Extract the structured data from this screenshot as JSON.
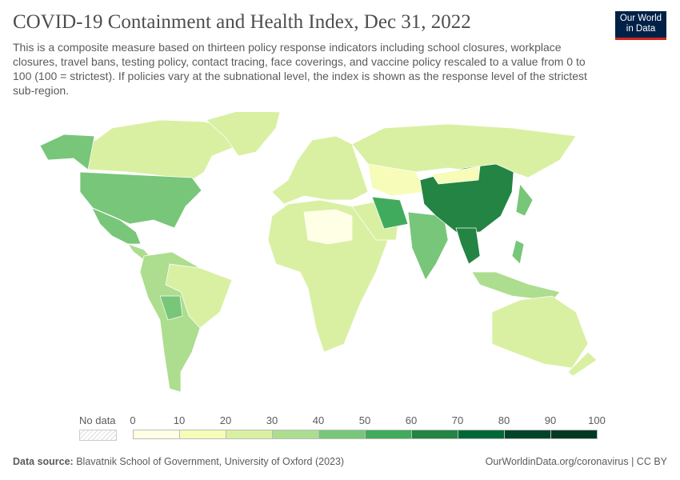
{
  "header": {
    "title": "COVID-19 Containment and Health Index, Dec 31, 2022",
    "subtitle": "This is a composite measure based on thirteen policy response indicators including school closures, workplace closures, travel bans, testing policy, contact tracing, face coverings, and vaccine policy rescaled to a value from 0 to 100 (100 = strictest). If policies vary at the subnational level, the index is shown as the response level of the strictest sub-region."
  },
  "logo": {
    "line1": "Our World",
    "line2": "in Data"
  },
  "legend": {
    "no_data_label": "No data",
    "ticks": [
      "0",
      "10",
      "20",
      "30",
      "40",
      "50",
      "60",
      "70",
      "80",
      "90",
      "100"
    ],
    "colors": [
      "#ffffe5",
      "#f7fcb9",
      "#d9f0a3",
      "#addd8e",
      "#78c679",
      "#41ab5d",
      "#238443",
      "#006837",
      "#004529",
      "#003a22"
    ]
  },
  "map": {
    "regions": [
      {
        "name": "Canada",
        "band": "20-30",
        "color": "#d9f0a3"
      },
      {
        "name": "Alaska",
        "band": "40-50",
        "color": "#78c679"
      },
      {
        "name": "Greenland",
        "band": "20-30",
        "color": "#d9f0a3"
      },
      {
        "name": "United States",
        "band": "40-50",
        "color": "#78c679"
      },
      {
        "name": "Mexico",
        "band": "40-50",
        "color": "#78c679"
      },
      {
        "name": "Central America",
        "band": "30-40",
        "color": "#addd8e"
      },
      {
        "name": "South America",
        "band": "30-40",
        "color": "#addd8e"
      },
      {
        "name": "Brazil",
        "band": "20-30",
        "color": "#d9f0a3"
      },
      {
        "name": "Bolivia",
        "band": "40-50",
        "color": "#78c679"
      },
      {
        "name": "Europe",
        "band": "20-30",
        "color": "#d9f0a3"
      },
      {
        "name": "Russia",
        "band": "20-30",
        "color": "#d9f0a3"
      },
      {
        "name": "Africa",
        "band": "20-30",
        "color": "#d9f0a3"
      },
      {
        "name": "Sahara",
        "band": "0-10",
        "color": "#ffffe5"
      },
      {
        "name": "Kazakhstan",
        "band": "10-20",
        "color": "#f7fcb9"
      },
      {
        "name": "Arabia",
        "band": "20-30",
        "color": "#d9f0a3"
      },
      {
        "name": "Iran",
        "band": "50-60",
        "color": "#41ab5d"
      },
      {
        "name": "India",
        "band": "40-50",
        "color": "#78c679"
      },
      {
        "name": "China",
        "band": "60-70",
        "color": "#238443"
      },
      {
        "name": "Mongolia",
        "band": "10-20",
        "color": "#f7fcb9"
      },
      {
        "name": "Myanmar",
        "band": "60-70",
        "color": "#238443"
      },
      {
        "name": "Indonesia",
        "band": "30-40",
        "color": "#addd8e"
      },
      {
        "name": "Japan",
        "band": "40-50",
        "color": "#78c679"
      },
      {
        "name": "Philippines",
        "band": "40-50",
        "color": "#78c679"
      },
      {
        "name": "Australia",
        "band": "20-30",
        "color": "#d9f0a3"
      },
      {
        "name": "New Zealand",
        "band": "20-30",
        "color": "#d9f0a3"
      }
    ]
  },
  "footer": {
    "source_label": "Data source:",
    "source": "Blavatnik School of Government, University of Oxford (2023)",
    "url": "OurWorldinData.org/coronavirus | CC BY"
  }
}
